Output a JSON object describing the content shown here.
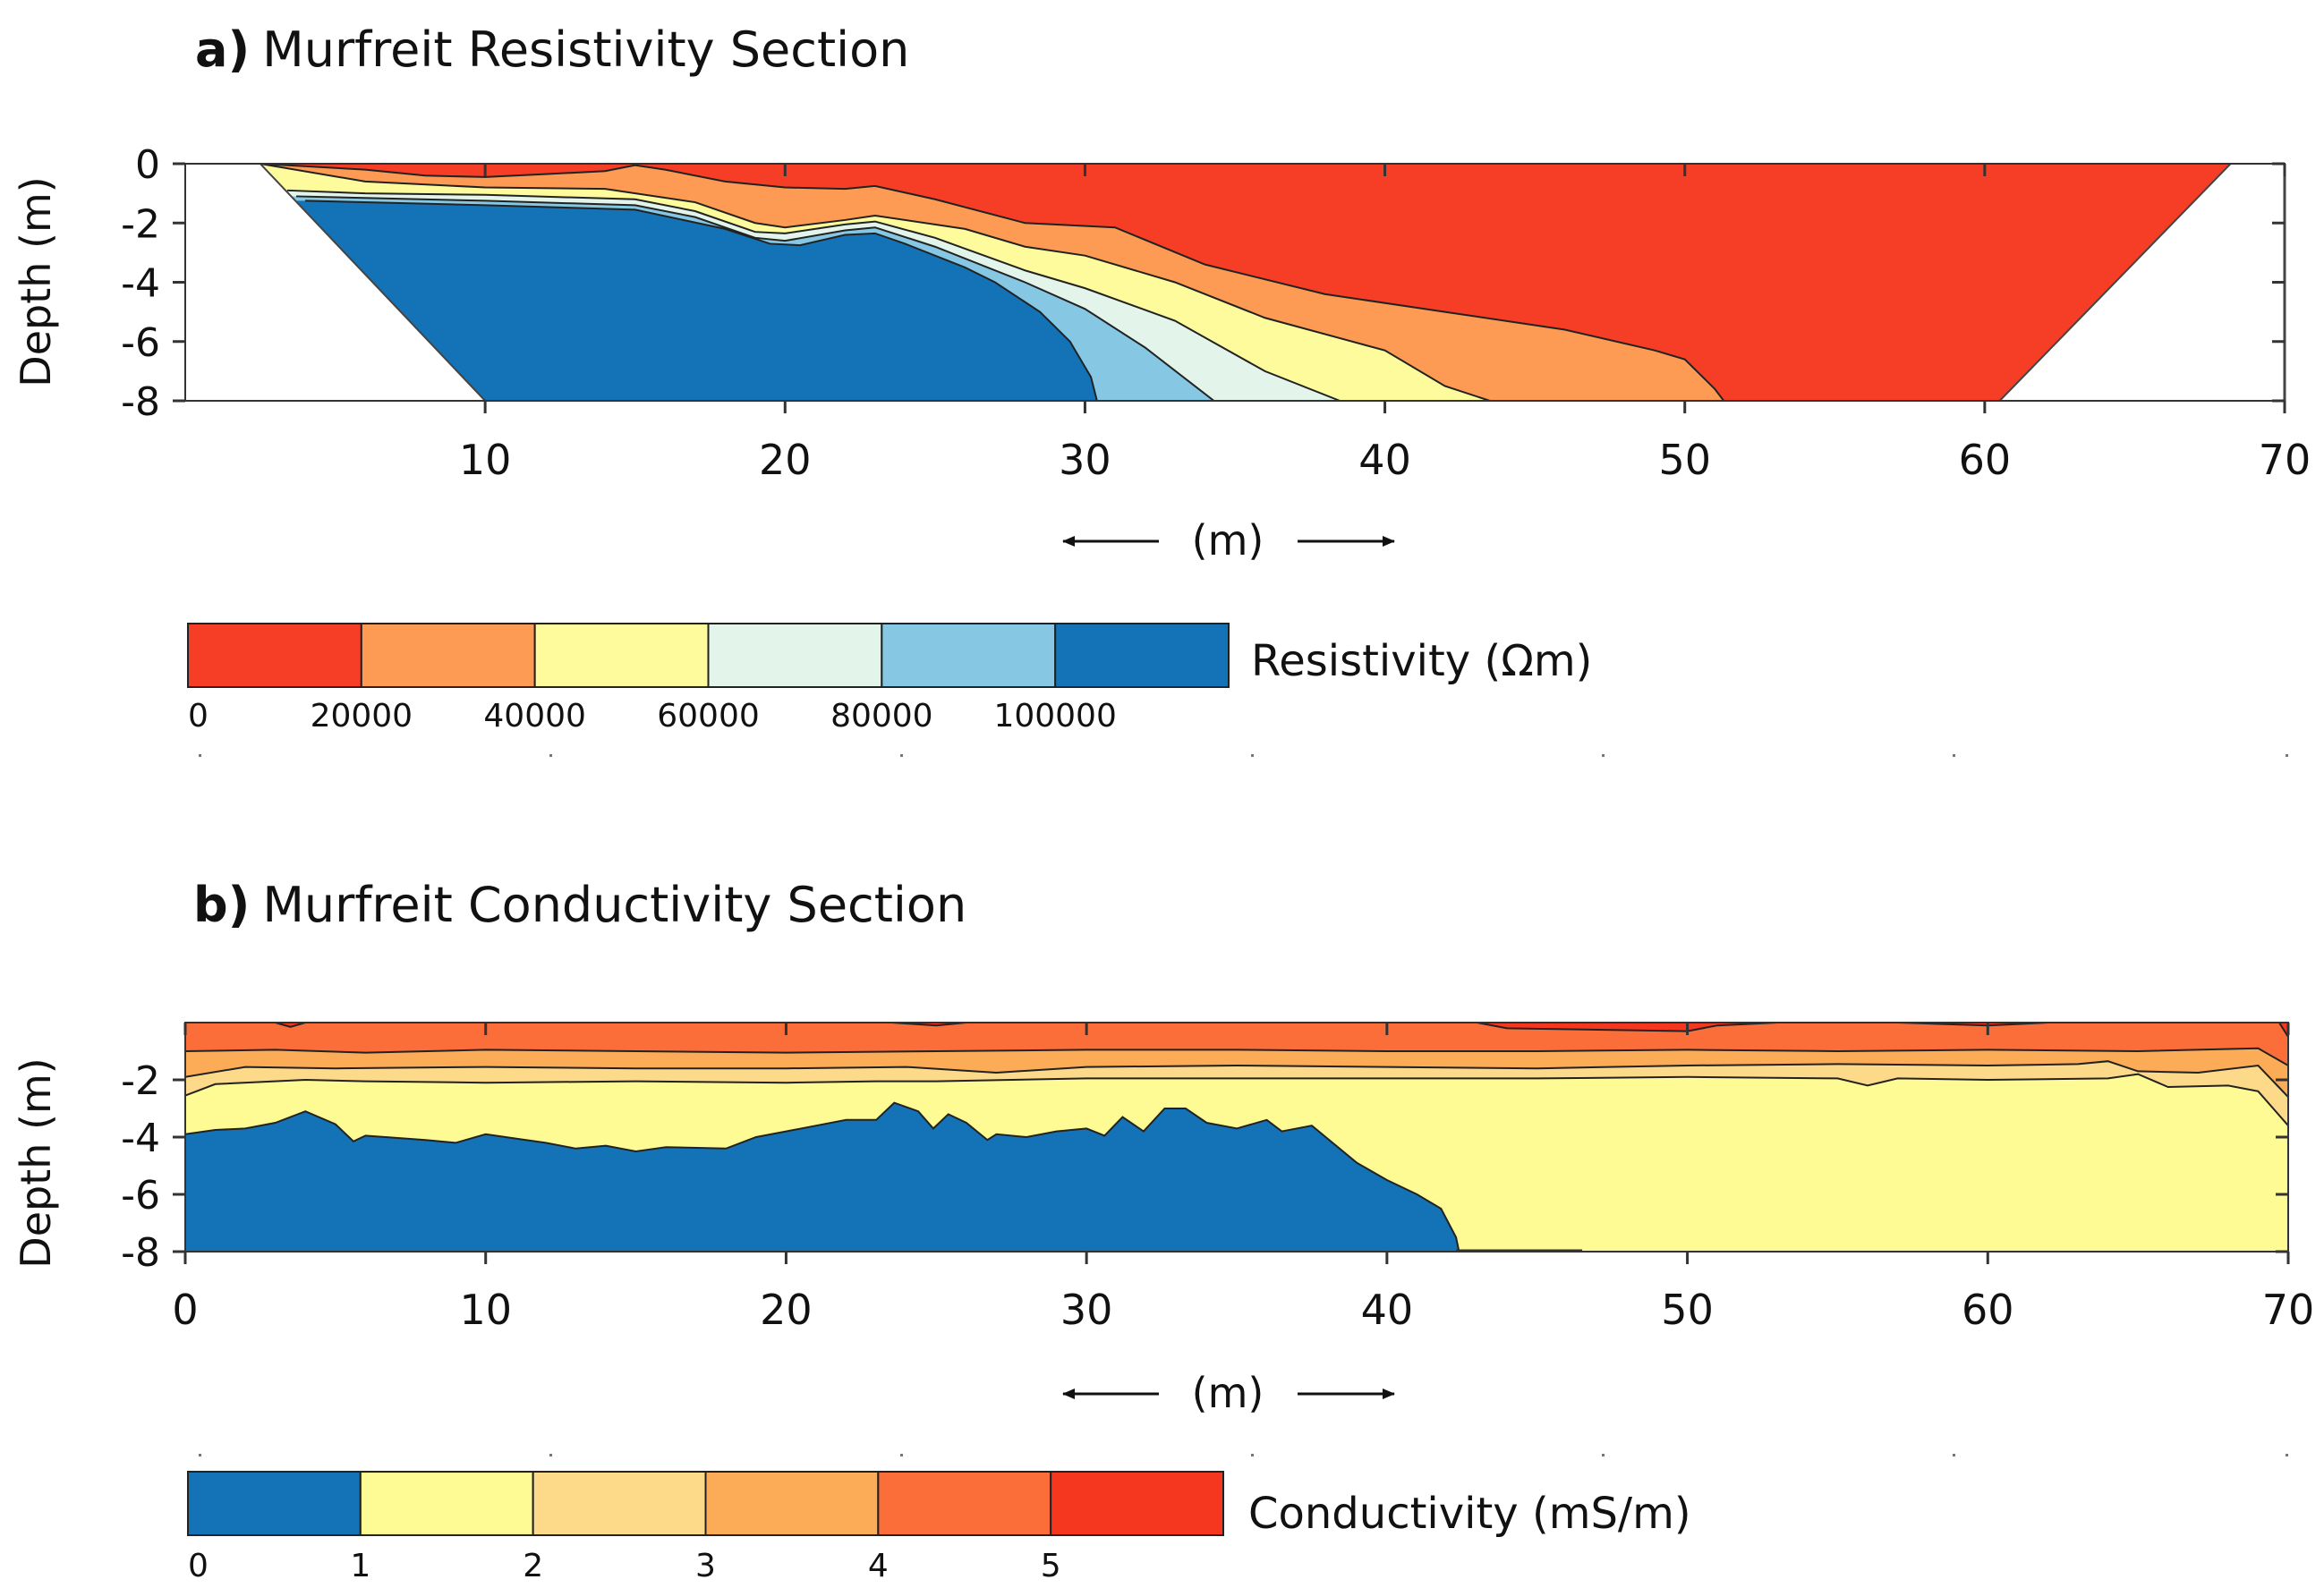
{
  "chart_data": [
    {
      "type": "heatmap",
      "panel_letter": "a)",
      "title": "Murfreit Resistivity Section",
      "xlabel": "(m)",
      "ylabel": "Depth (m)",
      "xlim": [
        0,
        70
      ],
      "ylim": [
        -8,
        0
      ],
      "x_ticks": [
        "10",
        "20",
        "30",
        "40",
        "50",
        "60",
        "70"
      ],
      "y_ticks": [
        "0",
        "-2",
        "-4",
        "-6",
        "-8"
      ],
      "colorbar": {
        "label": "Resistivity (Ωm)",
        "tick_labels": [
          "0",
          "20000",
          "40000",
          "60000",
          "80000",
          "100000"
        ],
        "colors": [
          "#f63e26",
          "#fd9a53",
          "#fefb9c",
          "#e3f4ea",
          "#86c8e3",
          "#1373b6"
        ]
      },
      "data_extent": {
        "top_left_x": 2.5,
        "top_right_x": 68.2,
        "bottom_left_x": 10,
        "bottom_right_x": 60.5
      },
      "boundaries": [
        {
          "name": "0-20000 / 20000-40000",
          "points": [
            [
              2.5,
              0
            ],
            [
              6,
              -0.2
            ],
            [
              8,
              -0.4
            ],
            [
              10,
              -0.45
            ],
            [
              12,
              -0.35
            ],
            [
              14,
              -0.25
            ],
            [
              15,
              -0.05
            ],
            [
              16,
              -0.2
            ],
            [
              18,
              -0.6
            ],
            [
              20,
              -0.8
            ],
            [
              22,
              -0.85
            ],
            [
              23,
              -0.75
            ],
            [
              25,
              -1.2
            ],
            [
              28,
              -2.0
            ],
            [
              31,
              -2.15
            ],
            [
              34,
              -3.4
            ],
            [
              38,
              -4.4
            ],
            [
              42,
              -5.0
            ],
            [
              46,
              -5.6
            ],
            [
              49,
              -6.3
            ],
            [
              50,
              -6.6
            ],
            [
              51,
              -7.6
            ],
            [
              51.3,
              -8
            ]
          ]
        },
        {
          "name": "20000-40000 / 40000-60000",
          "points": [
            [
              2.5,
              0
            ],
            [
              6,
              -0.6
            ],
            [
              10,
              -0.8
            ],
            [
              14,
              -0.85
            ],
            [
              17,
              -1.3
            ],
            [
              19,
              -2.0
            ],
            [
              20,
              -2.15
            ],
            [
              22,
              -1.9
            ],
            [
              23,
              -1.75
            ],
            [
              26,
              -2.2
            ],
            [
              28,
              -2.8
            ],
            [
              30,
              -3.1
            ],
            [
              33,
              -4.0
            ],
            [
              36,
              -5.2
            ],
            [
              40,
              -6.3
            ],
            [
              42,
              -7.5
            ],
            [
              43.5,
              -8
            ]
          ]
        },
        {
          "name": "40000-60000 / 60000-80000",
          "points": [
            [
              3.4,
              -0.9
            ],
            [
              6,
              -1.0
            ],
            [
              10,
              -1.05
            ],
            [
              15,
              -1.2
            ],
            [
              17,
              -1.6
            ],
            [
              19,
              -2.3
            ],
            [
              20,
              -2.35
            ],
            [
              22,
              -2.05
            ],
            [
              23,
              -1.95
            ],
            [
              25,
              -2.5
            ],
            [
              28,
              -3.6
            ],
            [
              30,
              -4.2
            ],
            [
              33,
              -5.3
            ],
            [
              36,
              -7.0
            ],
            [
              38.5,
              -8
            ]
          ]
        },
        {
          "name": "60000-80000 / 80000-100000",
          "points": [
            [
              3.7,
              -1.1
            ],
            [
              10,
              -1.25
            ],
            [
              15,
              -1.4
            ],
            [
              17,
              -1.8
            ],
            [
              19,
              -2.5
            ],
            [
              20,
              -2.6
            ],
            [
              22,
              -2.25
            ],
            [
              23,
              -2.15
            ],
            [
              25,
              -2.8
            ],
            [
              28,
              -4.0
            ],
            [
              30,
              -4.9
            ],
            [
              32,
              -6.2
            ],
            [
              34.3,
              -8
            ]
          ]
        },
        {
          "name": "80000-100000 / >100000",
          "points": [
            [
              4.0,
              -1.25
            ],
            [
              10,
              -1.4
            ],
            [
              15,
              -1.55
            ],
            [
              18,
              -2.2
            ],
            [
              19.5,
              -2.7
            ],
            [
              20.5,
              -2.75
            ],
            [
              22,
              -2.4
            ],
            [
              23,
              -2.35
            ],
            [
              24,
              -2.7
            ],
            [
              26,
              -3.5
            ],
            [
              27,
              -4.0
            ],
            [
              28.5,
              -5.0
            ],
            [
              29.5,
              -6.0
            ],
            [
              30.2,
              -7.2
            ],
            [
              30.4,
              -8
            ]
          ]
        }
      ]
    },
    {
      "type": "heatmap",
      "panel_letter": "b)",
      "title": "Murfreit Conductivity Section",
      "xlabel": "(m)",
      "ylabel": "Depth (m)",
      "xlim": [
        0,
        70
      ],
      "ylim": [
        -8,
        0
      ],
      "x_ticks": [
        "0",
        "10",
        "20",
        "30",
        "40",
        "50",
        "60",
        "70"
      ],
      "y_ticks": [
        "-2",
        "-4",
        "-6",
        "-8"
      ],
      "colorbar": {
        "label": "Conductivity (mS/m)",
        "tick_labels": [
          "0",
          "1",
          "2",
          "3",
          "4",
          "5"
        ],
        "colors": [
          "#1373b6",
          "#fefb94",
          "#fdd98a",
          "#fcab57",
          "#fb6e3a",
          "#f6371f"
        ]
      },
      "boundaries": [
        {
          "name": "0-1 / 1-2",
          "points": [
            [
              0,
              -3.9
            ],
            [
              1,
              -3.75
            ],
            [
              2,
              -3.7
            ],
            [
              3,
              -3.5
            ],
            [
              4,
              -3.1
            ],
            [
              5,
              -3.55
            ],
            [
              5.6,
              -4.15
            ],
            [
              6,
              -3.95
            ],
            [
              8,
              -4.1
            ],
            [
              9,
              -4.2
            ],
            [
              10,
              -3.9
            ],
            [
              11,
              -4.05
            ],
            [
              12,
              -4.2
            ],
            [
              13,
              -4.4
            ],
            [
              14,
              -4.3
            ],
            [
              15,
              -4.5
            ],
            [
              16,
              -4.35
            ],
            [
              18,
              -4.4
            ],
            [
              19,
              -4.0
            ],
            [
              20,
              -3.8
            ],
            [
              21,
              -3.6
            ],
            [
              22,
              -3.4
            ],
            [
              23,
              -3.4
            ],
            [
              23.6,
              -2.8
            ],
            [
              24.4,
              -3.1
            ],
            [
              24.9,
              -3.7
            ],
            [
              25.4,
              -3.2
            ],
            [
              26,
              -3.5
            ],
            [
              26.7,
              -4.1
            ],
            [
              27,
              -3.9
            ],
            [
              28,
              -4.0
            ],
            [
              29,
              -3.8
            ],
            [
              30,
              -3.7
            ],
            [
              30.6,
              -3.95
            ],
            [
              31.2,
              -3.3
            ],
            [
              31.9,
              -3.8
            ],
            [
              32.6,
              -3.0
            ],
            [
              33.3,
              -3.0
            ],
            [
              34,
              -3.5
            ],
            [
              35,
              -3.7
            ],
            [
              36,
              -3.4
            ],
            [
              36.5,
              -3.8
            ],
            [
              37.5,
              -3.6
            ],
            [
              39,
              -4.9
            ],
            [
              40,
              -5.5
            ],
            [
              41,
              -6.0
            ],
            [
              41.8,
              -6.5
            ],
            [
              42.3,
              -7.5
            ],
            [
              42.4,
              -8
            ]
          ]
        },
        {
          "name": "1-2 / 2-3",
          "points": [
            [
              0,
              -2.55
            ],
            [
              1,
              -2.15
            ],
            [
              4,
              -2.0
            ],
            [
              6,
              -2.05
            ],
            [
              10,
              -2.1
            ],
            [
              15,
              -2.05
            ],
            [
              20,
              -2.1
            ],
            [
              23,
              -2.05
            ],
            [
              25,
              -2.05
            ],
            [
              30,
              -1.95
            ],
            [
              35,
              -1.95
            ],
            [
              40,
              -1.95
            ],
            [
              45,
              -1.95
            ],
            [
              50,
              -1.9
            ],
            [
              55,
              -1.95
            ],
            [
              56,
              -2.2
            ],
            [
              57,
              -1.95
            ],
            [
              60,
              -2.0
            ],
            [
              64,
              -1.95
            ],
            [
              65,
              -1.8
            ],
            [
              66,
              -2.25
            ],
            [
              68,
              -2.2
            ],
            [
              69,
              -2.4
            ],
            [
              70,
              -3.6
            ]
          ]
        },
        {
          "name": "2-3 / 3-4",
          "points": [
            [
              0,
              -1.9
            ],
            [
              2,
              -1.55
            ],
            [
              5,
              -1.6
            ],
            [
              10,
              -1.55
            ],
            [
              15,
              -1.6
            ],
            [
              20,
              -1.6
            ],
            [
              24,
              -1.55
            ],
            [
              27,
              -1.75
            ],
            [
              30,
              -1.55
            ],
            [
              35,
              -1.5
            ],
            [
              40,
              -1.55
            ],
            [
              45,
              -1.6
            ],
            [
              50,
              -1.5
            ],
            [
              55,
              -1.45
            ],
            [
              60,
              -1.5
            ],
            [
              63,
              -1.45
            ],
            [
              64,
              -1.35
            ],
            [
              65,
              -1.7
            ],
            [
              67,
              -1.75
            ],
            [
              69,
              -1.5
            ],
            [
              70,
              -2.6
            ]
          ]
        },
        {
          "name": "3-4 / 4-5",
          "points": [
            [
              0,
              -1.0
            ],
            [
              3,
              -0.95
            ],
            [
              6,
              -1.05
            ],
            [
              10,
              -0.95
            ],
            [
              15,
              -1.0
            ],
            [
              20,
              -1.05
            ],
            [
              25,
              -1.0
            ],
            [
              30,
              -0.95
            ],
            [
              35,
              -0.95
            ],
            [
              40,
              -1.0
            ],
            [
              45,
              -1.0
            ],
            [
              50,
              -0.95
            ],
            [
              55,
              -1.0
            ],
            [
              60,
              -0.95
            ],
            [
              65,
              -1.0
            ],
            [
              69,
              -0.9
            ],
            [
              70,
              -1.5
            ]
          ]
        },
        {
          "name": "4-5 / >5",
          "points": [
            [
              3,
              0
            ],
            [
              3.5,
              -0.15
            ],
            [
              4,
              0
            ],
            [
              23.5,
              0
            ],
            [
              25,
              -0.1
            ],
            [
              26,
              0
            ],
            [
              43,
              0
            ],
            [
              44,
              -0.2
            ],
            [
              50,
              -0.3
            ],
            [
              51,
              -0.1
            ],
            [
              53,
              0
            ],
            [
              57,
              0
            ],
            [
              60,
              -0.1
            ],
            [
              62,
              0
            ],
            [
              69.7,
              0
            ],
            [
              70,
              -0.5
            ]
          ]
        }
      ]
    }
  ]
}
